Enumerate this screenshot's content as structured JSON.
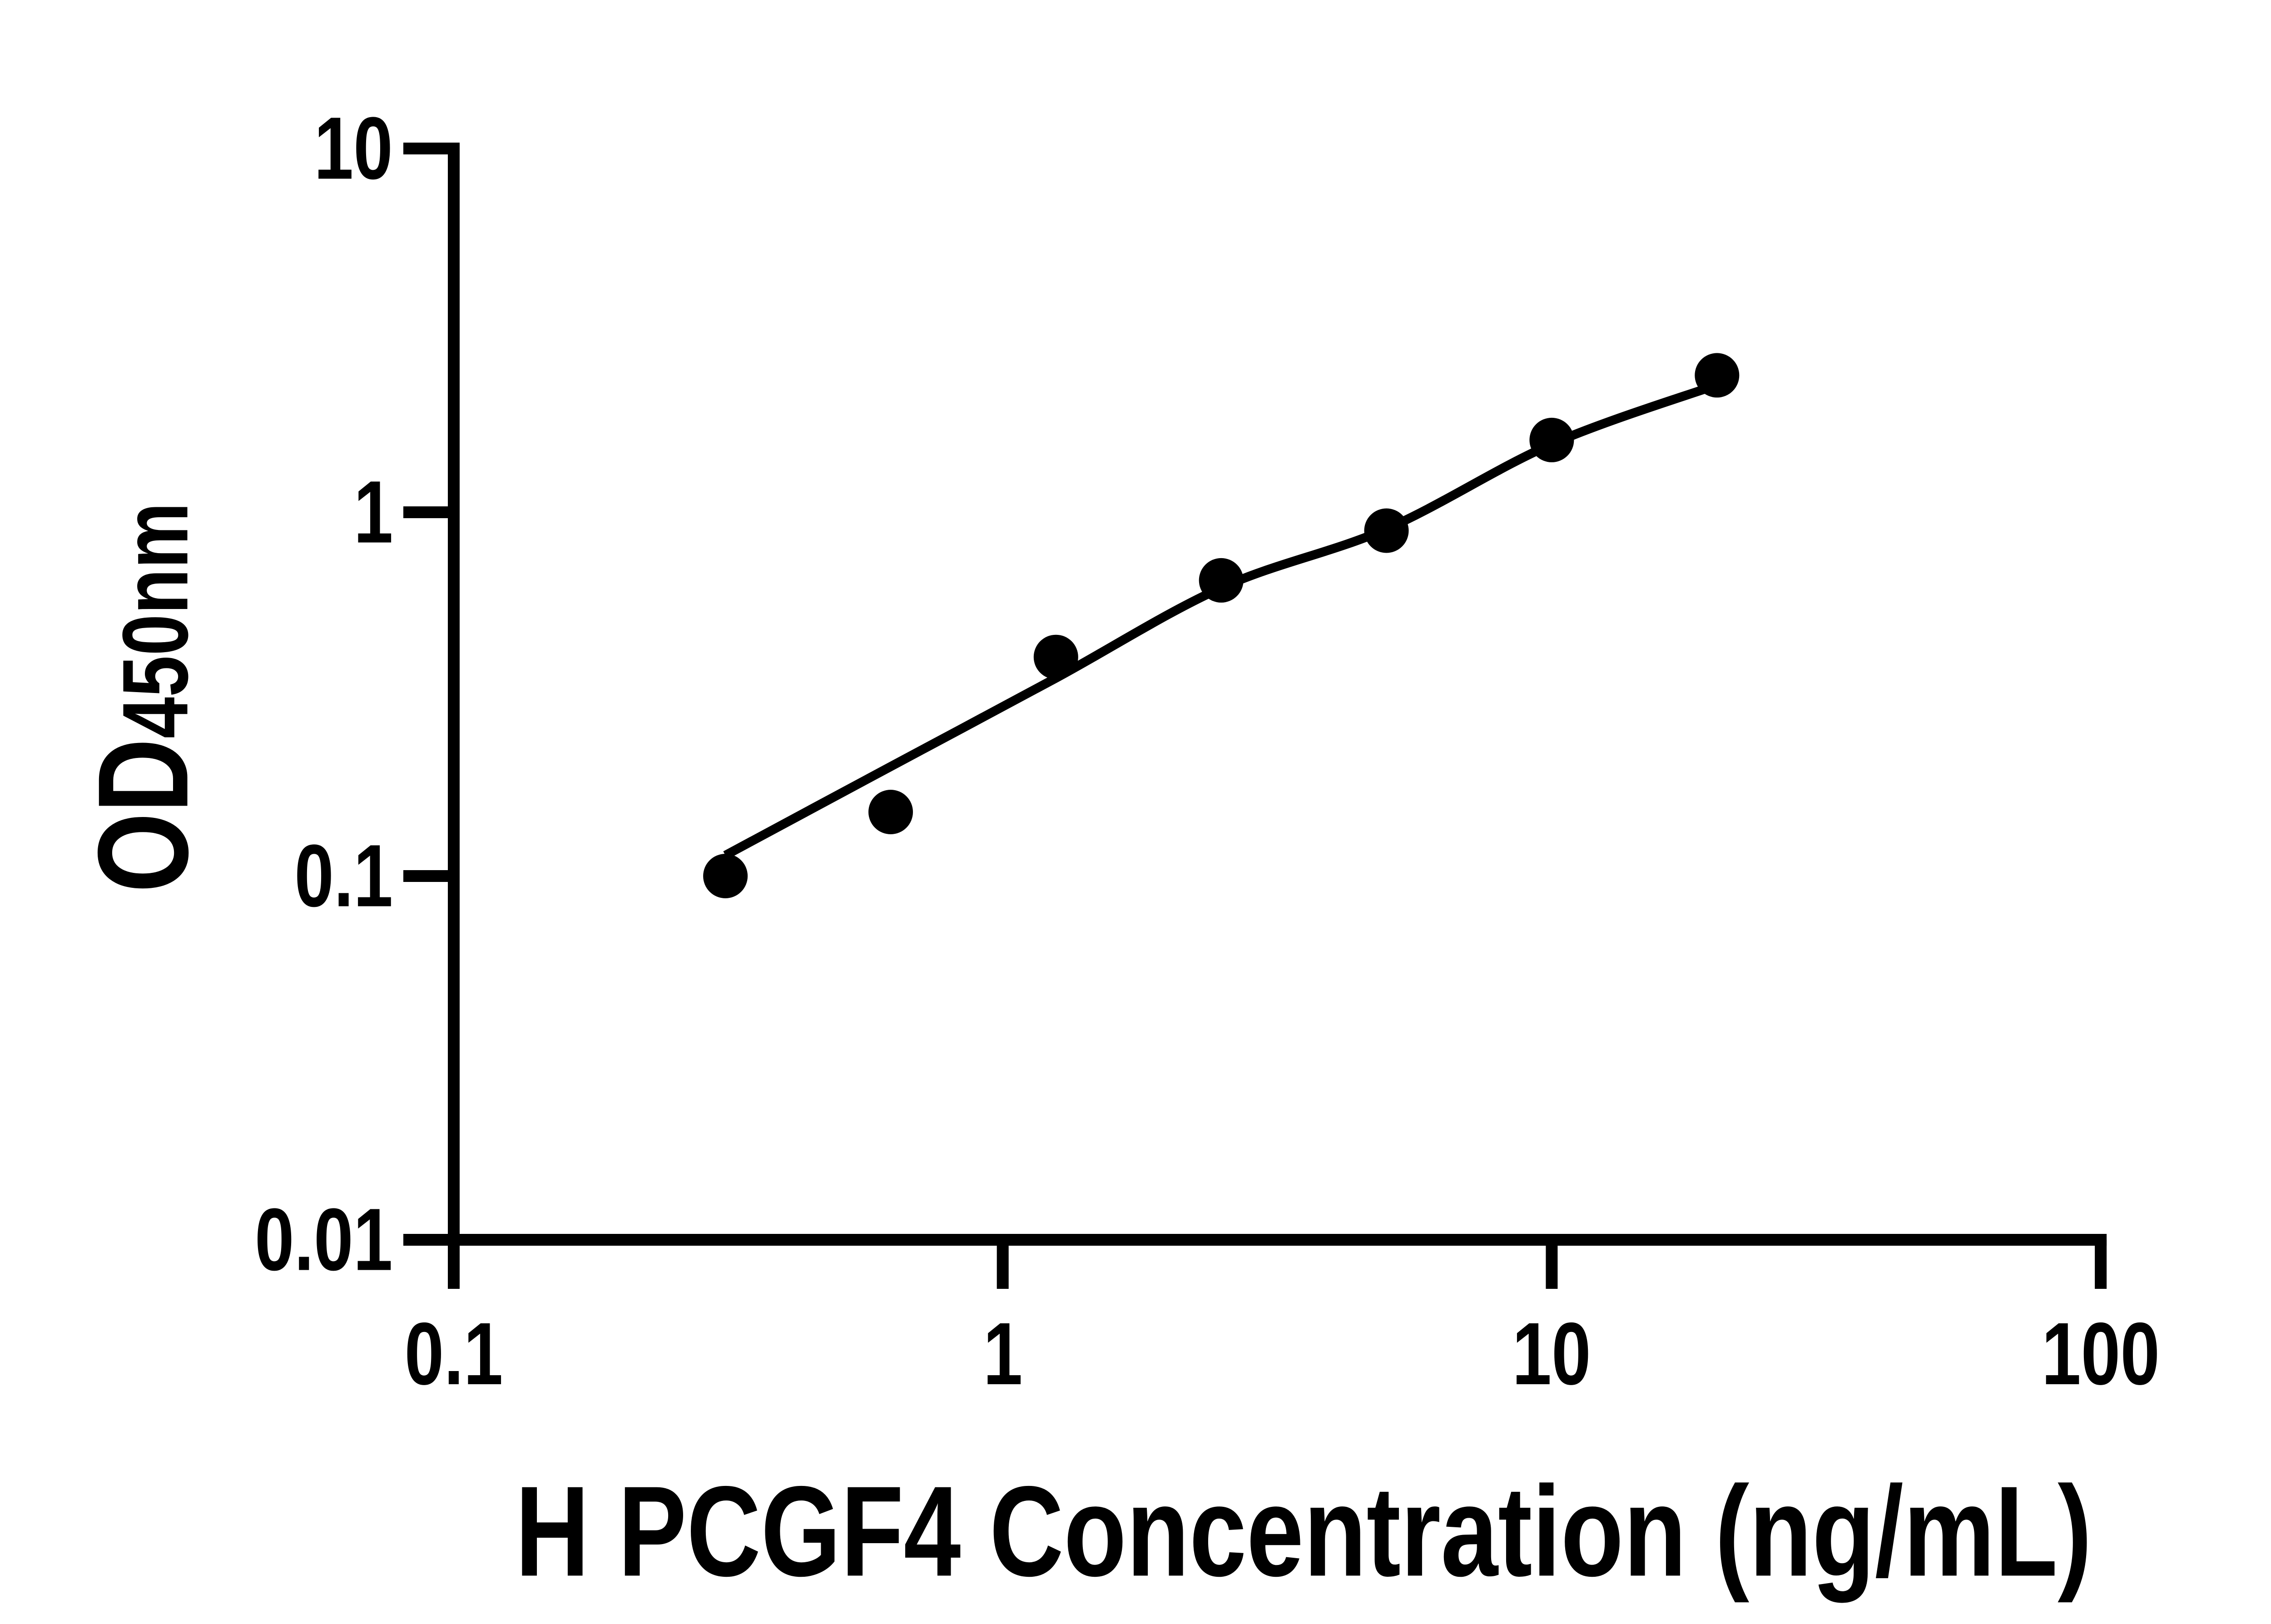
{
  "style": {
    "background": "#ffffff",
    "axis_color": "#000000",
    "text_color": "#000000",
    "marker_color": "#000000",
    "curve_color": "#000000"
  },
  "chart_data": {
    "type": "scatter",
    "title": "",
    "xlabel": "H PCGF4 Concentration (ng/mL)",
    "ylabel": {
      "main": "OD",
      "sub": "450nm"
    },
    "x_scale": "log",
    "y_scale": "log",
    "xlim": [
      0.1,
      100
    ],
    "ylim": [
      0.01,
      10
    ],
    "grid": false,
    "legend": "none",
    "x_ticks": [
      {
        "value": 0.1,
        "label": "0.1"
      },
      {
        "value": 1,
        "label": "1"
      },
      {
        "value": 10,
        "label": "10"
      },
      {
        "value": 100,
        "label": "100"
      }
    ],
    "y_ticks": [
      {
        "value": 10,
        "label": "10"
      },
      {
        "value": 1,
        "label": "1"
      },
      {
        "value": 0.1,
        "label": "0.1"
      },
      {
        "value": 0.01,
        "label": "0.01"
      }
    ],
    "series": [
      {
        "name": "standard-points",
        "marker": "circle",
        "x": [
          0.3125,
          0.625,
          1.25,
          2.5,
          5,
          10,
          20
        ],
        "od": [
          0.1,
          0.15,
          0.4,
          0.65,
          0.89,
          1.58,
          2.38
        ]
      }
    ],
    "fit_curve": {
      "name": "4pl-fit-line",
      "x": [
        0.3125,
        0.625,
        1.25,
        2.5,
        5,
        10,
        20
      ],
      "od": [
        0.114,
        0.2,
        0.35,
        0.62,
        0.9,
        1.54,
        2.24
      ]
    }
  }
}
